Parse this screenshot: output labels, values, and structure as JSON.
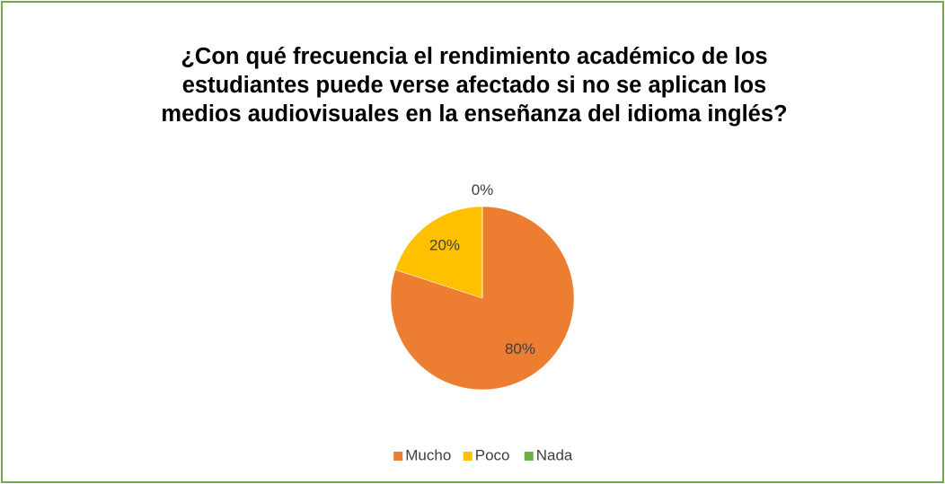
{
  "chart_data": {
    "type": "pie",
    "title": "¿Con qué frecuencia el rendimiento académico de los estudiantes puede verse afectado si no se aplican los medios audiovisuales en la enseñanza del idioma inglés?",
    "categories": [
      "Mucho",
      "Poco",
      "Nada"
    ],
    "values": [
      80,
      20,
      0
    ],
    "value_labels": [
      "80%",
      "20%",
      "0%"
    ],
    "colors": [
      "#ED7D31",
      "#FFC000",
      "#70AD47"
    ],
    "legend": "bottom"
  }
}
